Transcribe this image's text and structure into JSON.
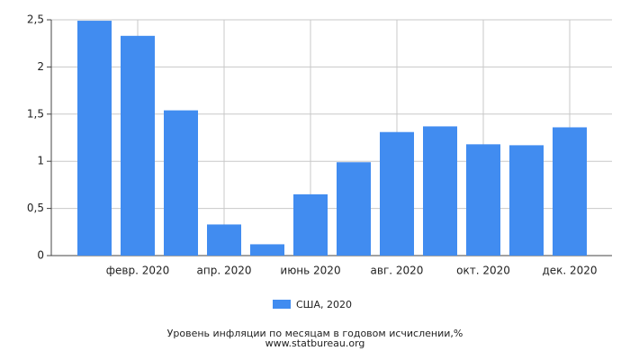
{
  "chart_data": {
    "type": "bar",
    "title": "Уровень инфляции по месяцам в годовом исчислении,%",
    "source": "www.statbureau.org",
    "categories": [
      null,
      "февр. 2020",
      null,
      "апр. 2020",
      null,
      "июнь 2020",
      null,
      "авг. 2020",
      null,
      "окт. 2020",
      null,
      "дек. 2020"
    ],
    "series": [
      {
        "name": "США, 2020",
        "color": "#418cf0",
        "values": [
          2.49,
          2.33,
          1.54,
          0.33,
          0.12,
          0.65,
          0.99,
          1.31,
          1.37,
          1.18,
          1.17,
          1.36
        ]
      }
    ],
    "ylim": [
      0,
      2.5
    ],
    "yticks": [
      0,
      {
        "value": 0.5,
        "label": "0,5"
      },
      1,
      {
        "value": 1.5,
        "label": "1,5"
      },
      2,
      {
        "value": 2.5,
        "label": "2,5"
      }
    ],
    "grid": true,
    "legend": "bottom"
  }
}
